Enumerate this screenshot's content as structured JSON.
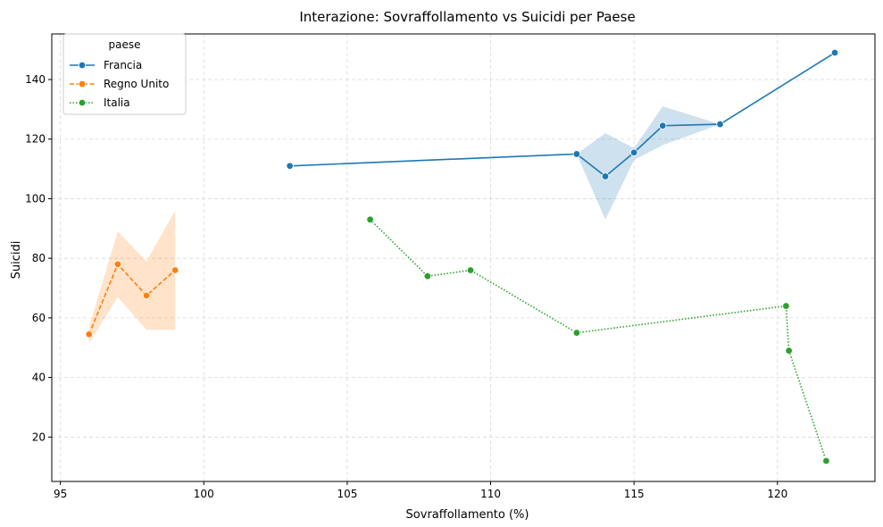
{
  "chart_data": {
    "type": "line",
    "title": "Interazione: Sovraffollamento vs Suicidi per Paese",
    "xlabel": "Sovraffollamento (%)",
    "ylabel": "Suicidi",
    "xlim": [
      94.7,
      123.4
    ],
    "ylim": [
      5.1,
      155.3
    ],
    "xticks": [
      95,
      100,
      105,
      110,
      115,
      120
    ],
    "yticks": [
      20,
      40,
      60,
      80,
      100,
      120,
      140
    ],
    "grid": true,
    "legend": {
      "title": "paese",
      "position": "top-left"
    },
    "series": [
      {
        "name": "Francia",
        "color": "#1f77b4",
        "dash": "solid",
        "points": [
          [
            103,
            111
          ],
          [
            113,
            115
          ],
          [
            114,
            107.5
          ],
          [
            115,
            115.5
          ],
          [
            116,
            124.5
          ],
          [
            118,
            125
          ],
          [
            122,
            149
          ]
        ],
        "ci": [
          [
            103,
            111,
            111
          ],
          [
            113,
            115,
            115
          ],
          [
            114,
            93,
            122
          ],
          [
            115,
            113,
            117
          ],
          [
            116,
            118,
            131
          ],
          [
            118,
            125,
            125
          ],
          [
            122,
            149,
            149
          ]
        ]
      },
      {
        "name": "Regno Unito",
        "color": "#ff7f0e",
        "dash": "dashed",
        "points": [
          [
            96,
            54.5
          ],
          [
            97,
            78
          ],
          [
            98,
            67.5
          ],
          [
            99,
            76
          ]
        ],
        "ci": [
          [
            96,
            51.5,
            57
          ],
          [
            97,
            67,
            89
          ],
          [
            98,
            56,
            79
          ],
          [
            99,
            56,
            96
          ]
        ]
      },
      {
        "name": "Italia",
        "color": "#2ca02c",
        "dash": "dotted",
        "points": [
          [
            105.8,
            93
          ],
          [
            107.8,
            74
          ],
          [
            109.3,
            76
          ],
          [
            113,
            55
          ],
          [
            120.3,
            64
          ],
          [
            120.4,
            49
          ],
          [
            121.7,
            12
          ]
        ],
        "ci": []
      }
    ]
  }
}
